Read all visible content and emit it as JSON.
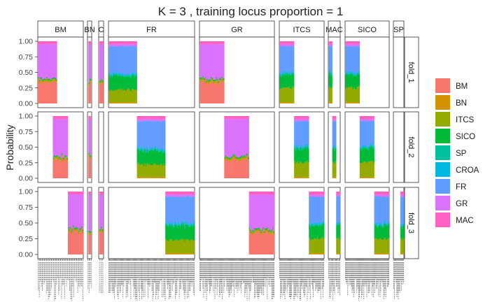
{
  "chart_data": {
    "type": "bar",
    "subtype": "stacked-structure-plot-faceted",
    "title": "K = 3  , training locus proportion = 1",
    "ylabel": "Probability",
    "xlabel": "",
    "ylim": [
      0,
      1
    ],
    "yticks": [
      "0.00",
      "0.25",
      "0.50",
      "0.75",
      "1.00"
    ],
    "column_facets": [
      {
        "label": "BM",
        "display": "BM",
        "n": 45
      },
      {
        "label": "BN",
        "display": "BN",
        "n": 4
      },
      {
        "label": "CROA",
        "display": "C",
        "n": 3
      },
      {
        "label": "FR",
        "display": "FR",
        "n": 110
      },
      {
        "label": "GR",
        "display": "GR",
        "n": 100
      },
      {
        "label": "ITCS",
        "display": "ITCS",
        "n": 60
      },
      {
        "label": "MAC",
        "display": "MAC",
        "n": 14
      },
      {
        "label": "SICO",
        "display": "SICO",
        "n": 60
      },
      {
        "label": "SP",
        "display": "SP",
        "n": 14
      }
    ],
    "row_facets": [
      "fold_1",
      "fold_2",
      "fold_3"
    ],
    "legend": {
      "placement": "right",
      "entries": [
        {
          "name": "BM",
          "color": "#F8766D"
        },
        {
          "name": "BN",
          "color": "#D39200"
        },
        {
          "name": "ITCS",
          "color": "#93AA00"
        },
        {
          "name": "SICO",
          "color": "#00BA38"
        },
        {
          "name": "SP",
          "color": "#00C19F"
        },
        {
          "name": "CROA",
          "color": "#00B9E3"
        },
        {
          "name": "FR",
          "color": "#619CFF"
        },
        {
          "name": "GR",
          "color": "#DB72FB"
        },
        {
          "name": "MAC",
          "color": "#FF61C3"
        }
      ]
    },
    "panels": [
      {
        "fold": "fold_1",
        "facet": "BM",
        "range": [
          0.0,
          0.42
        ],
        "probs": {
          "BM": 0.34,
          "BN": 0.02,
          "ITCS": 0.02,
          "SICO": 0.02,
          "GR": 0.55,
          "MAC": 0.05
        }
      },
      {
        "fold": "fold_1",
        "facet": "BN",
        "range": [
          0.2,
          0.8
        ],
        "probs": {
          "BM": 0.32,
          "BN": 0.02,
          "ITCS": 0.02,
          "SICO": 0.02,
          "GR": 0.57,
          "MAC": 0.05
        }
      },
      {
        "fold": "fold_1",
        "facet": "CROA",
        "range": [
          0.15,
          0.85
        ],
        "probs": {
          "BM": 0.34,
          "BN": 0.02,
          "ITCS": 0.02,
          "SICO": 0.02,
          "GR": 0.55,
          "MAC": 0.05
        }
      },
      {
        "fold": "fold_1",
        "facet": "FR",
        "range": [
          0.0,
          0.33
        ],
        "probs": {
          "BN": 0.02,
          "ITCS": 0.2,
          "SICO": 0.22,
          "SP": 0.02,
          "CROA": 0.02,
          "FR": 0.44,
          "GR": 0.03,
          "MAC": 0.05
        }
      },
      {
        "fold": "fold_1",
        "facet": "GR",
        "range": [
          0.0,
          0.33
        ],
        "probs": {
          "BM": 0.34,
          "BN": 0.02,
          "ITCS": 0.02,
          "SICO": 0.02,
          "GR": 0.55,
          "MAC": 0.05
        }
      },
      {
        "fold": "fold_1",
        "facet": "ITCS",
        "range": [
          0.0,
          0.33
        ],
        "probs": {
          "BN": 0.02,
          "ITCS": 0.23,
          "SICO": 0.21,
          "SP": 0.02,
          "CROA": 0.02,
          "FR": 0.42,
          "GR": 0.03,
          "MAC": 0.05
        }
      },
      {
        "fold": "fold_1",
        "facet": "MAC",
        "range": [
          0.0,
          0.33
        ],
        "probs": {
          "BN": 0.02,
          "ITCS": 0.23,
          "SICO": 0.21,
          "SP": 0.02,
          "CROA": 0.02,
          "FR": 0.42,
          "GR": 0.03,
          "MAC": 0.05
        }
      },
      {
        "fold": "fold_1",
        "facet": "SICO",
        "range": [
          0.0,
          0.33
        ],
        "probs": {
          "BN": 0.02,
          "ITCS": 0.23,
          "SICO": 0.21,
          "SP": 0.02,
          "CROA": 0.02,
          "FR": 0.42,
          "GR": 0.03,
          "MAC": 0.05
        }
      },
      {
        "fold": "fold_2",
        "facet": "BM",
        "range": [
          0.33,
          0.66
        ],
        "probs": {
          "BM": 0.3,
          "BN": 0.02,
          "ITCS": 0.02,
          "SICO": 0.02,
          "GR": 0.59,
          "MAC": 0.05
        }
      },
      {
        "fold": "fold_2",
        "facet": "BN",
        "range": [
          0.2,
          0.8
        ],
        "probs": {
          "BM": 0.32,
          "BN": 0.02,
          "ITCS": 0.02,
          "SICO": 0.02,
          "GR": 0.57,
          "MAC": 0.05
        }
      },
      {
        "fold": "fold_2",
        "facet": "FR",
        "range": [
          0.33,
          0.66
        ],
        "probs": {
          "BN": 0.02,
          "ITCS": 0.2,
          "SICO": 0.22,
          "SP": 0.02,
          "CROA": 0.02,
          "FR": 0.44,
          "GR": 0.03,
          "MAC": 0.05
        }
      },
      {
        "fold": "fold_2",
        "facet": "GR",
        "range": [
          0.33,
          0.66
        ],
        "probs": {
          "BM": 0.3,
          "BN": 0.02,
          "ITCS": 0.02,
          "SICO": 0.02,
          "GR": 0.59,
          "MAC": 0.05
        }
      },
      {
        "fold": "fold_2",
        "facet": "ITCS",
        "range": [
          0.33,
          0.66
        ],
        "probs": {
          "BN": 0.02,
          "ITCS": 0.24,
          "SICO": 0.22,
          "SP": 0.02,
          "CROA": 0.02,
          "FR": 0.4,
          "GR": 0.03,
          "MAC": 0.05
        }
      },
      {
        "fold": "fold_2",
        "facet": "MAC",
        "range": [
          0.33,
          0.66
        ],
        "probs": {
          "BN": 0.02,
          "ITCS": 0.24,
          "SICO": 0.22,
          "SP": 0.02,
          "CROA": 0.02,
          "FR": 0.4,
          "GR": 0.03,
          "MAC": 0.05
        }
      },
      {
        "fold": "fold_2",
        "facet": "SICO",
        "range": [
          0.33,
          0.66
        ],
        "probs": {
          "BN": 0.02,
          "ITCS": 0.24,
          "SICO": 0.22,
          "SP": 0.02,
          "CROA": 0.02,
          "FR": 0.4,
          "GR": 0.03,
          "MAC": 0.05
        }
      },
      {
        "fold": "fold_3",
        "facet": "BM",
        "range": [
          0.66,
          1.0
        ],
        "probs": {
          "BM": 0.36,
          "BN": 0.02,
          "ITCS": 0.02,
          "SICO": 0.02,
          "GR": 0.53,
          "MAC": 0.05
        }
      },
      {
        "fold": "fold_3",
        "facet": "BN",
        "range": [
          0.2,
          0.8
        ],
        "probs": {
          "BM": 0.32,
          "BN": 0.02,
          "ITCS": 0.02,
          "SICO": 0.02,
          "GR": 0.57,
          "MAC": 0.05
        }
      },
      {
        "fold": "fold_3",
        "facet": "CROA",
        "range": [
          0.15,
          0.85
        ],
        "probs": {
          "BM": 0.34,
          "BN": 0.02,
          "ITCS": 0.02,
          "SICO": 0.02,
          "GR": 0.55,
          "MAC": 0.05
        }
      },
      {
        "fold": "fold_3",
        "facet": "FR",
        "range": [
          0.66,
          1.0
        ],
        "probs": {
          "BN": 0.02,
          "ITCS": 0.21,
          "SICO": 0.22,
          "SP": 0.02,
          "CROA": 0.02,
          "FR": 0.43,
          "GR": 0.03,
          "MAC": 0.05
        }
      },
      {
        "fold": "fold_3",
        "facet": "GR",
        "range": [
          0.66,
          1.0
        ],
        "probs": {
          "BM": 0.34,
          "BN": 0.02,
          "ITCS": 0.02,
          "SICO": 0.02,
          "GR": 0.55,
          "MAC": 0.05
        }
      },
      {
        "fold": "fold_3",
        "facet": "ITCS",
        "range": [
          0.66,
          1.0
        ],
        "probs": {
          "BN": 0.02,
          "ITCS": 0.23,
          "SICO": 0.21,
          "SP": 0.02,
          "CROA": 0.02,
          "FR": 0.42,
          "GR": 0.03,
          "MAC": 0.05
        }
      },
      {
        "fold": "fold_3",
        "facet": "MAC",
        "range": [
          0.66,
          1.0
        ],
        "probs": {
          "BN": 0.02,
          "ITCS": 0.23,
          "SICO": 0.21,
          "SP": 0.02,
          "CROA": 0.02,
          "FR": 0.42,
          "GR": 0.03,
          "MAC": 0.05
        }
      },
      {
        "fold": "fold_3",
        "facet": "SICO",
        "range": [
          0.66,
          1.0
        ],
        "probs": {
          "BN": 0.02,
          "ITCS": 0.23,
          "SICO": 0.21,
          "SP": 0.02,
          "CROA": 0.02,
          "FR": 0.42,
          "GR": 0.03,
          "MAC": 0.05
        }
      },
      {
        "fold": "fold_3",
        "facet": "SP",
        "range": [
          0.66,
          1.0
        ],
        "probs": {
          "BN": 0.02,
          "ITCS": 0.23,
          "SICO": 0.21,
          "SP": 0.02,
          "CROA": 0.02,
          "FR": 0.42,
          "GR": 0.03,
          "MAC": 0.05
        }
      }
    ],
    "grid": false,
    "x_tick_labels_note": "dense illegible rotated sample identifiers along the x axis"
  }
}
